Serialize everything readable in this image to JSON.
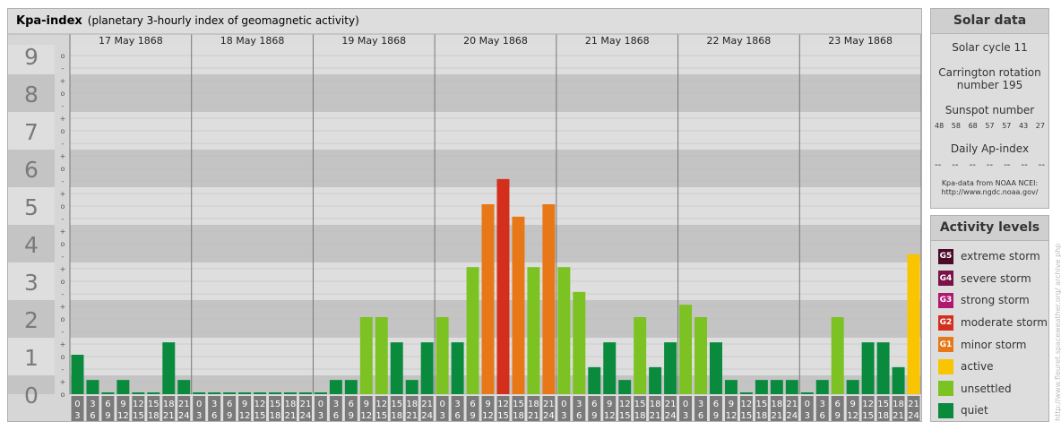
{
  "header": {
    "title": "Kpa-index",
    "subtitle": "(planetary 3-hourly index of geomagnetic activity)"
  },
  "chart_data": {
    "type": "bar",
    "title": "Kpa-index",
    "subtitle": "(planetary 3-hourly index of geomagnetic activity)",
    "ylim": [
      0,
      9
    ],
    "y_ticks": [
      "0",
      "1",
      "2",
      "3",
      "4",
      "5",
      "6",
      "7",
      "8",
      "9"
    ],
    "minor_ticks": [
      "o",
      "+",
      "-"
    ],
    "days": [
      "17 May 1868",
      "18 May 1868",
      "19 May 1868",
      "20 May 1868",
      "21 May 1868",
      "22 May 1868",
      "23 May 1868"
    ],
    "interval_start": [
      "0",
      "3",
      "6",
      "9",
      "12",
      "15",
      "18",
      "21"
    ],
    "interval_end": [
      "3",
      "6",
      "9",
      "12",
      "15",
      "18",
      "21",
      "24"
    ],
    "values": [
      [
        1.0,
        0.33,
        0.0,
        0.33,
        0.0,
        0.0,
        1.33,
        0.33
      ],
      [
        0.0,
        0.0,
        0.0,
        0.0,
        0.0,
        0.0,
        0.0,
        0.0
      ],
      [
        0.0,
        0.33,
        0.33,
        2.0,
        2.0,
        1.33,
        0.33,
        1.33
      ],
      [
        2.0,
        1.33,
        3.33,
        5.0,
        5.67,
        4.67,
        3.33,
        5.0
      ],
      [
        3.33,
        2.67,
        0.67,
        1.33,
        0.33,
        2.0,
        0.67,
        1.33
      ],
      [
        2.33,
        2.0,
        1.33,
        0.33,
        0.0,
        0.33,
        0.33,
        0.33
      ],
      [
        0.0,
        0.33,
        2.0,
        0.33,
        1.33,
        1.33,
        0.67,
        3.67
      ]
    ],
    "grid": true
  },
  "solar": {
    "title": "Solar data",
    "cycle": "Solar cycle 11",
    "carrington_1": "Carrington rotation",
    "carrington_2": "number 195",
    "sunspot_label": "Sunspot number",
    "sunspot_values": [
      "48",
      "58",
      "68",
      "57",
      "57",
      "43",
      "27"
    ],
    "ap_label": "Daily Ap-index",
    "ap_values": [
      "--",
      "--",
      "--",
      "--",
      "--",
      "--",
      "--"
    ],
    "source_1": "Kpa-data from NOAA NCEI:",
    "source_2": "http://www.ngdc.noaa.gov/"
  },
  "levels": {
    "title": "Activity levels",
    "items": [
      {
        "code": "G5",
        "label": "extreme storm",
        "color": "#4a0a28"
      },
      {
        "code": "G4",
        "label": "severe storm",
        "color": "#7a1248"
      },
      {
        "code": "G3",
        "label": "strong storm",
        "color": "#b0176e"
      },
      {
        "code": "G2",
        "label": "moderate storm",
        "color": "#d32f1c"
      },
      {
        "code": "G1",
        "label": "minor storm",
        "color": "#e87718"
      },
      {
        "code": "",
        "label": "active",
        "color": "#f9c400"
      },
      {
        "code": "",
        "label": "unsettled",
        "color": "#7cc223"
      },
      {
        "code": "",
        "label": "quiet",
        "color": "#0a8a3d"
      }
    ]
  },
  "credit": "http://www.fleuret.spaceweather.org/ archive php"
}
